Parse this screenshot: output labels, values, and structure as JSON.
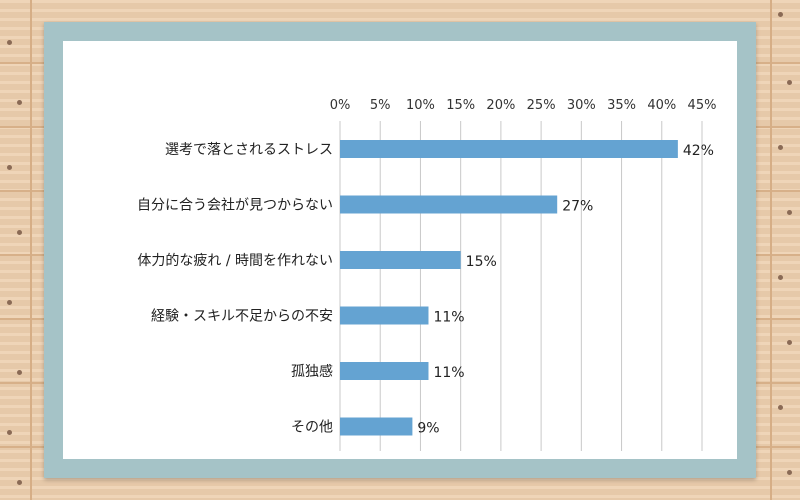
{
  "chart_data": {
    "type": "bar",
    "orientation": "horizontal",
    "categories": [
      "選考で落とされるストレス",
      "自分に合う会社が見つからない",
      "体力的な疲れ / 時間を作れない",
      "経験・スキル不足からの不安",
      "孤独感",
      "その他"
    ],
    "values": [
      42,
      27,
      15,
      11,
      11,
      9
    ],
    "value_labels": [
      "42%",
      "27%",
      "15%",
      "11%",
      "11%",
      "9%"
    ],
    "xticks": [
      "0%",
      "5%",
      "10%",
      "15%",
      "20%",
      "25%",
      "30%",
      "35%",
      "40%",
      "45%"
    ],
    "xlim": [
      0,
      45
    ],
    "xaxis_position": "top",
    "grid": true,
    "bar_color": "#64a3d2",
    "title": "",
    "xlabel": "",
    "ylabel": ""
  },
  "colors": {
    "frame": "#a5c3c7",
    "panel": "#ffffff",
    "wood": "#edcfae",
    "nail": "#8a6a55"
  }
}
